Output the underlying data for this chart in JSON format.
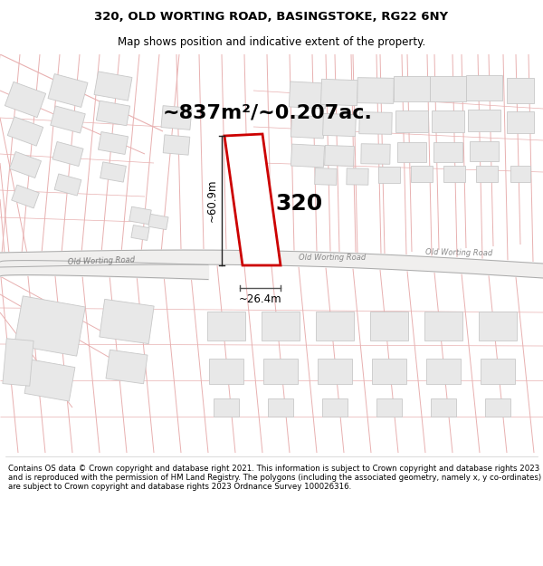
{
  "title": "320, OLD WORTING ROAD, BASINGSTOKE, RG22 6NY",
  "subtitle": "Map shows position and indicative extent of the property.",
  "area_text": "~837m²/~0.207ac.",
  "property_number": "320",
  "dim_height": "~60.9m",
  "dim_width": "~26.4m",
  "road_label_left": "Old Worting Road",
  "road_label_center": "Old Worting Road",
  "road_label_right": "Old Worting Road",
  "footer": "Contains OS data © Crown copyright and database right 2021. This information is subject to Crown copyright and database rights 2023 and is reproduced with the permission of HM Land Registry. The polygons (including the associated geometry, namely x, y co-ordinates) are subject to Crown copyright and database rights 2023 Ordnance Survey 100026316.",
  "bg_color": "#ffffff",
  "map_bg": "#ffffff",
  "property_outline_color": "#cc0000",
  "property_fill": "#ffffff",
  "road_fill": "#f0efee",
  "road_edge": "#aaaaaa",
  "building_fill": "#e8e8e8",
  "building_edge": "#c8c8c8",
  "pink_line_color": "#e8b0b0",
  "pink_line_color2": "#f0c8c8",
  "dim_line_color": "#222222",
  "hdim_line_color": "#555555",
  "title_fontsize": 9.5,
  "subtitle_fontsize": 8.5,
  "area_fontsize": 16,
  "number_fontsize": 18,
  "dim_fontsize": 8.5,
  "road_label_fontsize": 6,
  "footer_fontsize": 6.2
}
